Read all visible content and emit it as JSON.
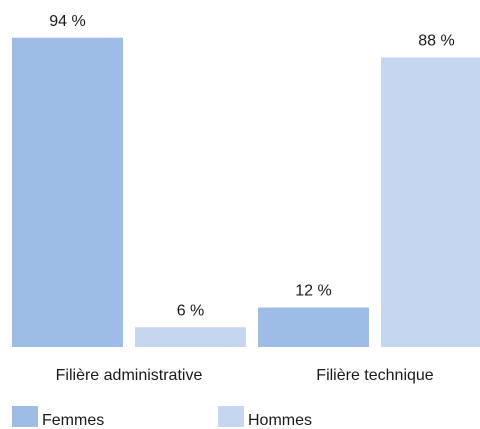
{
  "chart_data": {
    "type": "bar",
    "categories": [
      "Filière administrative",
      "Filière technique"
    ],
    "series": [
      {
        "name": "Femmes",
        "color": "#9dbde6",
        "values": [
          94,
          12
        ],
        "value_labels": [
          "94 %",
          "12 %"
        ]
      },
      {
        "name": "Hommes",
        "color": "#c5d6f0",
        "values": [
          6,
          88
        ],
        "value_labels": [
          "6 %",
          "88 %"
        ]
      }
    ],
    "ylim": [
      0,
      100
    ]
  }
}
